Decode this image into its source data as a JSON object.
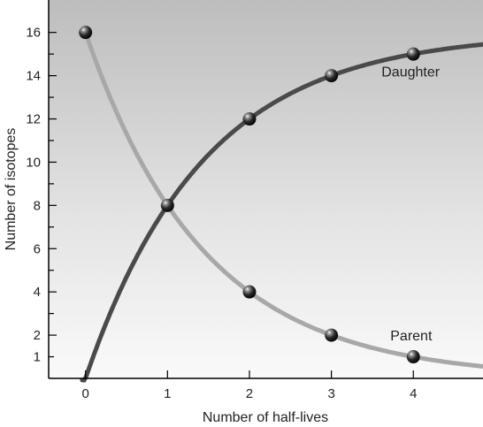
{
  "chart_data": {
    "type": "line",
    "xlabel": "Number of half-lives",
    "ylabel": "Number of isotopes",
    "xlim": [
      -0.45,
      4.85
    ],
    "ylim": [
      0,
      17.5
    ],
    "x_ticks": [
      0,
      1,
      2,
      3,
      4
    ],
    "y_ticks": [
      1,
      2,
      4,
      6,
      8,
      10,
      12,
      14,
      16
    ],
    "grid": false,
    "background": "vertical gradient, dark gray at top to white at bottom",
    "series": [
      {
        "name": "Daughter",
        "color": "#4a4a4a",
        "points": [
          {
            "x": 1,
            "y": 8
          },
          {
            "x": 2,
            "y": 12
          },
          {
            "x": 3,
            "y": 14
          },
          {
            "x": 4,
            "y": 15
          }
        ]
      },
      {
        "name": "Parent",
        "color": "#a8a8a8",
        "points": [
          {
            "x": 0,
            "y": 16
          },
          {
            "x": 1,
            "y": 8
          },
          {
            "x": 2,
            "y": 4
          },
          {
            "x": 3,
            "y": 2
          },
          {
            "x": 4,
            "y": 1
          }
        ]
      }
    ],
    "marker": "dark sphere"
  }
}
